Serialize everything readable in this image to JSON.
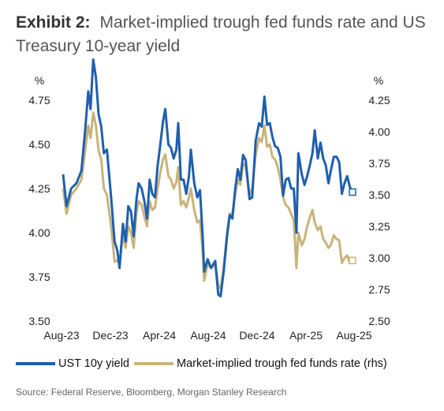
{
  "header": {
    "exhibit_label": "Exhibit 2:",
    "title": "Market-implied trough fed funds rate and US Treasury 10-year yield"
  },
  "source": "Source: Federal Reserve, Bloomberg, Morgan Stanley Research",
  "colors": {
    "ust10y": "#1f5fae",
    "trough": "#c8b47a",
    "axis_text": "#222222"
  },
  "chart_data": {
    "type": "line",
    "left_axis": {
      "unit": "%",
      "ylim": [
        3.5,
        4.75
      ],
      "ticks": [
        "3.50",
        "3.75",
        "4.00",
        "4.25",
        "4.50",
        "4.75"
      ]
    },
    "right_axis": {
      "unit": "%",
      "ylim": [
        2.5,
        4.25
      ],
      "ticks": [
        "2.50",
        "2.75",
        "3.00",
        "3.25",
        "3.50",
        "3.75",
        "4.00",
        "4.25"
      ]
    },
    "x_ticks": [
      "Aug-23",
      "Dec-23",
      "Apr-24",
      "Aug-24",
      "Dec-24",
      "Apr-25",
      "Aug-25"
    ],
    "grid": false,
    "legend_position": "bottom",
    "series": [
      {
        "name": "UST 10y yield",
        "axis": "left",
        "points": [
          [
            "2023-08-01",
            4.33
          ],
          [
            "2023-08-10",
            4.15
          ],
          [
            "2023-08-22",
            4.25
          ],
          [
            "2023-09-05",
            4.28
          ],
          [
            "2023-09-18",
            4.35
          ],
          [
            "2023-09-28",
            4.58
          ],
          [
            "2023-10-06",
            4.8
          ],
          [
            "2023-10-12",
            4.7
          ],
          [
            "2023-10-19",
            4.98
          ],
          [
            "2023-10-26",
            4.88
          ],
          [
            "2023-11-02",
            4.67
          ],
          [
            "2023-11-09",
            4.6
          ],
          [
            "2023-11-16",
            4.45
          ],
          [
            "2023-11-24",
            4.47
          ],
          [
            "2023-12-05",
            4.2
          ],
          [
            "2023-12-14",
            3.95
          ],
          [
            "2023-12-21",
            3.9
          ],
          [
            "2023-12-27",
            3.8
          ],
          [
            "2024-01-05",
            4.05
          ],
          [
            "2024-01-12",
            3.95
          ],
          [
            "2024-01-19",
            4.15
          ],
          [
            "2024-01-26",
            4.12
          ],
          [
            "2024-02-02",
            3.98
          ],
          [
            "2024-02-09",
            4.18
          ],
          [
            "2024-02-15",
            4.28
          ],
          [
            "2024-02-23",
            4.25
          ],
          [
            "2024-03-01",
            4.18
          ],
          [
            "2024-03-08",
            4.08
          ],
          [
            "2024-03-15",
            4.3
          ],
          [
            "2024-03-22",
            4.22
          ],
          [
            "2024-03-29",
            4.2
          ],
          [
            "2024-04-05",
            4.38
          ],
          [
            "2024-04-12",
            4.5
          ],
          [
            "2024-04-19",
            4.63
          ],
          [
            "2024-04-25",
            4.7
          ],
          [
            "2024-05-03",
            4.5
          ],
          [
            "2024-05-10",
            4.48
          ],
          [
            "2024-05-17",
            4.42
          ],
          [
            "2024-05-24",
            4.47
          ],
          [
            "2024-05-29",
            4.62
          ],
          [
            "2024-06-05",
            4.3
          ],
          [
            "2024-06-12",
            4.3
          ],
          [
            "2024-06-19",
            4.22
          ],
          [
            "2024-06-26",
            4.32
          ],
          [
            "2024-07-01",
            4.47
          ],
          [
            "2024-07-10",
            4.28
          ],
          [
            "2024-07-18",
            4.2
          ],
          [
            "2024-07-25",
            4.24
          ],
          [
            "2024-08-01",
            3.98
          ],
          [
            "2024-08-05",
            3.78
          ],
          [
            "2024-08-14",
            3.85
          ],
          [
            "2024-08-23",
            3.8
          ],
          [
            "2024-09-03",
            3.84
          ],
          [
            "2024-09-11",
            3.65
          ],
          [
            "2024-09-17",
            3.64
          ],
          [
            "2024-09-25",
            3.78
          ],
          [
            "2024-10-04",
            3.98
          ],
          [
            "2024-10-11",
            4.1
          ],
          [
            "2024-10-18",
            4.08
          ],
          [
            "2024-10-25",
            4.24
          ],
          [
            "2024-11-01",
            4.36
          ],
          [
            "2024-11-08",
            4.3
          ],
          [
            "2024-11-15",
            4.44
          ],
          [
            "2024-11-22",
            4.41
          ],
          [
            "2024-12-02",
            4.19
          ],
          [
            "2024-12-09",
            4.2
          ],
          [
            "2024-12-18",
            4.52
          ],
          [
            "2024-12-27",
            4.62
          ],
          [
            "2025-01-03",
            4.6
          ],
          [
            "2025-01-10",
            4.77
          ],
          [
            "2025-01-17",
            4.61
          ],
          [
            "2025-01-24",
            4.62
          ],
          [
            "2025-01-31",
            4.54
          ],
          [
            "2025-02-07",
            4.49
          ],
          [
            "2025-02-14",
            4.48
          ],
          [
            "2025-02-21",
            4.43
          ],
          [
            "2025-02-28",
            4.21
          ],
          [
            "2025-03-07",
            4.3
          ],
          [
            "2025-03-14",
            4.31
          ],
          [
            "2025-03-21",
            4.25
          ],
          [
            "2025-03-28",
            4.25
          ],
          [
            "2025-04-04",
            4.0
          ],
          [
            "2025-04-09",
            4.45
          ],
          [
            "2025-04-18",
            4.33
          ],
          [
            "2025-04-25",
            4.27
          ],
          [
            "2025-05-02",
            4.32
          ],
          [
            "2025-05-09",
            4.38
          ],
          [
            "2025-05-16",
            4.45
          ],
          [
            "2025-05-22",
            4.58
          ],
          [
            "2025-05-30",
            4.42
          ],
          [
            "2025-06-06",
            4.51
          ],
          [
            "2025-06-13",
            4.42
          ],
          [
            "2025-06-20",
            4.38
          ],
          [
            "2025-06-27",
            4.28
          ],
          [
            "2025-07-03",
            4.35
          ],
          [
            "2025-07-11",
            4.43
          ],
          [
            "2025-07-18",
            4.43
          ],
          [
            "2025-07-25",
            4.4
          ],
          [
            "2025-08-01",
            4.22
          ],
          [
            "2025-08-08",
            4.28
          ],
          [
            "2025-08-15",
            4.32
          ],
          [
            "2025-08-22",
            4.26
          ],
          [
            "2025-08-29",
            4.23
          ]
        ]
      },
      {
        "name": "Market-implied trough fed funds rate (rhs)",
        "axis": "right",
        "points": [
          [
            "2023-08-01",
            3.55
          ],
          [
            "2023-08-10",
            3.35
          ],
          [
            "2023-08-22",
            3.5
          ],
          [
            "2023-09-05",
            3.55
          ],
          [
            "2023-09-18",
            3.62
          ],
          [
            "2023-09-28",
            3.85
          ],
          [
            "2023-10-06",
            4.05
          ],
          [
            "2023-10-12",
            3.95
          ],
          [
            "2023-10-19",
            4.15
          ],
          [
            "2023-10-26",
            4.05
          ],
          [
            "2023-11-02",
            3.85
          ],
          [
            "2023-11-09",
            3.78
          ],
          [
            "2023-11-16",
            3.55
          ],
          [
            "2023-11-24",
            3.5
          ],
          [
            "2023-12-05",
            3.25
          ],
          [
            "2023-12-14",
            2.97
          ],
          [
            "2023-12-21",
            2.98
          ],
          [
            "2023-12-27",
            2.96
          ],
          [
            "2024-01-05",
            3.18
          ],
          [
            "2024-01-12",
            3.08
          ],
          [
            "2024-01-19",
            3.25
          ],
          [
            "2024-01-26",
            3.2
          ],
          [
            "2024-02-02",
            3.08
          ],
          [
            "2024-02-09",
            3.35
          ],
          [
            "2024-02-15",
            3.45
          ],
          [
            "2024-02-23",
            3.42
          ],
          [
            "2024-03-01",
            3.33
          ],
          [
            "2024-03-08",
            3.25
          ],
          [
            "2024-03-15",
            3.45
          ],
          [
            "2024-03-22",
            3.38
          ],
          [
            "2024-03-29",
            3.4
          ],
          [
            "2024-04-05",
            3.55
          ],
          [
            "2024-04-12",
            3.68
          ],
          [
            "2024-04-19",
            3.78
          ],
          [
            "2024-04-25",
            3.82
          ],
          [
            "2024-05-03",
            3.65
          ],
          [
            "2024-05-10",
            3.62
          ],
          [
            "2024-05-17",
            3.55
          ],
          [
            "2024-05-24",
            3.6
          ],
          [
            "2024-05-29",
            3.72
          ],
          [
            "2024-06-05",
            3.42
          ],
          [
            "2024-06-12",
            3.45
          ],
          [
            "2024-06-19",
            3.4
          ],
          [
            "2024-06-26",
            3.48
          ],
          [
            "2024-07-01",
            3.55
          ],
          [
            "2024-07-10",
            3.38
          ],
          [
            "2024-07-18",
            3.28
          ],
          [
            "2024-07-25",
            3.3
          ],
          [
            "2024-08-01",
            3.05
          ],
          [
            "2024-08-05",
            2.82
          ],
          [
            "2024-08-14",
            2.95
          ],
          [
            "2024-08-23",
            2.92
          ],
          [
            "2024-09-03",
            2.95
          ],
          [
            "2024-09-11",
            2.78
          ],
          [
            "2024-09-17",
            2.76
          ],
          [
            "2024-09-25",
            2.92
          ],
          [
            "2024-10-04",
            3.2
          ],
          [
            "2024-10-11",
            3.35
          ],
          [
            "2024-10-18",
            3.35
          ],
          [
            "2024-10-25",
            3.5
          ],
          [
            "2024-11-01",
            3.62
          ],
          [
            "2024-11-08",
            3.58
          ],
          [
            "2024-11-15",
            3.75
          ],
          [
            "2024-11-22",
            3.72
          ],
          [
            "2024-12-02",
            3.5
          ],
          [
            "2024-12-09",
            3.55
          ],
          [
            "2024-12-18",
            3.82
          ],
          [
            "2024-12-27",
            3.95
          ],
          [
            "2025-01-03",
            3.92
          ],
          [
            "2025-01-10",
            4.05
          ],
          [
            "2025-01-17",
            3.88
          ],
          [
            "2025-01-24",
            3.9
          ],
          [
            "2025-01-31",
            3.8
          ],
          [
            "2025-02-07",
            3.78
          ],
          [
            "2025-02-14",
            3.72
          ],
          [
            "2025-02-21",
            3.62
          ],
          [
            "2025-02-28",
            3.48
          ],
          [
            "2025-03-07",
            3.42
          ],
          [
            "2025-03-14",
            3.4
          ],
          [
            "2025-03-21",
            3.35
          ],
          [
            "2025-03-28",
            3.3
          ],
          [
            "2025-04-04",
            2.92
          ],
          [
            "2025-04-09",
            3.2
          ],
          [
            "2025-04-18",
            3.1
          ],
          [
            "2025-04-25",
            3.15
          ],
          [
            "2025-05-02",
            3.25
          ],
          [
            "2025-05-09",
            3.32
          ],
          [
            "2025-05-16",
            3.38
          ],
          [
            "2025-05-22",
            3.28
          ],
          [
            "2025-05-30",
            3.22
          ],
          [
            "2025-06-06",
            3.25
          ],
          [
            "2025-06-13",
            3.15
          ],
          [
            "2025-06-20",
            3.12
          ],
          [
            "2025-06-27",
            3.08
          ],
          [
            "2025-07-03",
            3.1
          ],
          [
            "2025-07-11",
            3.18
          ],
          [
            "2025-07-18",
            3.15
          ],
          [
            "2025-07-25",
            3.14
          ],
          [
            "2025-08-01",
            2.96
          ],
          [
            "2025-08-08",
            3.0
          ],
          [
            "2025-08-15",
            3.02
          ],
          [
            "2025-08-22",
            2.96
          ],
          [
            "2025-08-29",
            2.98
          ]
        ]
      }
    ]
  }
}
